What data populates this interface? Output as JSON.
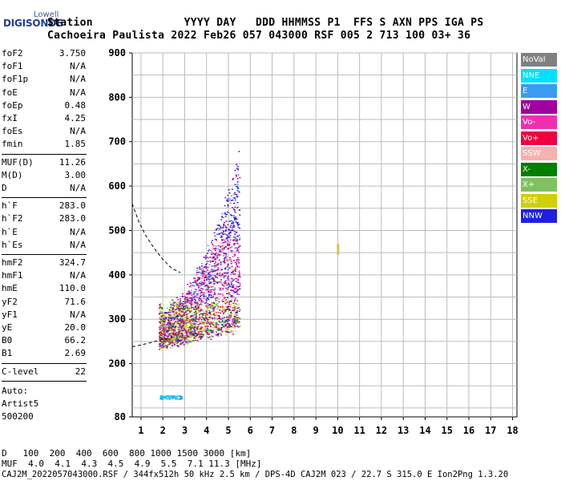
{
  "logo": {
    "top": "Lowell",
    "main": "DIGISONDE"
  },
  "header": {
    "line1": "Station              YYYY DAY   DDD HHMMSS P1  FFS S AXN PPS IGA PS",
    "line2": "Cachoeira Paulista 2022 Feb26 057 043000 RSF 005 2 713 100 03+ 36"
  },
  "params": {
    "group1": [
      {
        "name": "foF2",
        "value": "3.750"
      },
      {
        "name": "foF1",
        "value": "N/A"
      },
      {
        "name": "foF1p",
        "value": "N/A"
      },
      {
        "name": "foE",
        "value": "N/A"
      },
      {
        "name": "foEp",
        "value": "0.48"
      },
      {
        "name": "fxI",
        "value": "4.25"
      },
      {
        "name": "foEs",
        "value": "N/A"
      },
      {
        "name": "fmin",
        "value": "1.85"
      }
    ],
    "group2": [
      {
        "name": "MUF(D)",
        "value": "11.26"
      },
      {
        "name": "M(D)",
        "value": "3.00"
      },
      {
        "name": "D",
        "value": "N/A"
      }
    ],
    "group3": [
      {
        "name": "h`F",
        "value": "283.0"
      },
      {
        "name": "h`F2",
        "value": "283.0"
      },
      {
        "name": "h`E",
        "value": "N/A"
      },
      {
        "name": "h`Es",
        "value": "N/A"
      }
    ],
    "group4": [
      {
        "name": "hmF2",
        "value": "324.7"
      },
      {
        "name": "hmF1",
        "value": "N/A"
      },
      {
        "name": "hmE",
        "value": "110.0"
      },
      {
        "name": "yF2",
        "value": "71.6"
      },
      {
        "name": "yF1",
        "value": "N/A"
      },
      {
        "name": "yE",
        "value": "20.0"
      },
      {
        "name": "B0",
        "value": "66.2"
      },
      {
        "name": "B1",
        "value": "2.69"
      }
    ],
    "group5": [
      {
        "name": "C-level",
        "value": "22"
      }
    ],
    "auto_label": "Auto:",
    "artist": "Artist5",
    "version": "500200"
  },
  "legend": [
    {
      "label": "NoVal",
      "color": "#808080",
      "text": "#ffffff"
    },
    {
      "label": "NNE",
      "color": "#00e0ff",
      "text": "#ffffff"
    },
    {
      "label": "E",
      "color": "#3a9cf0",
      "text": "#ffffff"
    },
    {
      "label": "W",
      "color": "#a000a0",
      "text": "#ffffff"
    },
    {
      "label": "Vo-",
      "color": "#ee30b0",
      "text": "#ffffff"
    },
    {
      "label": "Vo+",
      "color": "#f00040",
      "text": "#ffffff"
    },
    {
      "label": "SSW",
      "color": "#f8b0b0",
      "text": "#ffffff"
    },
    {
      "label": "X-",
      "color": "#008000",
      "text": "#ffffff"
    },
    {
      "label": "X+",
      "color": "#80c060",
      "text": "#ffffff"
    },
    {
      "label": "SSE",
      "color": "#d0d000",
      "text": "#ffffff"
    },
    {
      "label": "NNW",
      "color": "#2020e0",
      "text": "#ffffff"
    }
  ],
  "chart_data": {
    "type": "scatter",
    "title": "",
    "xlabel": "",
    "ylabel": "",
    "xlim": [
      0.6,
      18.2
    ],
    "ylim": [
      80,
      900
    ],
    "x_ticks": [
      1,
      2,
      3,
      4,
      5,
      6,
      7,
      8,
      9,
      10,
      11,
      12,
      13,
      14,
      15,
      16,
      17,
      18
    ],
    "y_ticks": [
      80,
      200,
      300,
      400,
      500,
      600,
      700,
      800,
      900
    ],
    "grid": true,
    "trace_profile": [
      {
        "x": 0.6,
        "y": 560
      },
      {
        "x": 0.9,
        "y": 520
      },
      {
        "x": 1.2,
        "y": 490
      },
      {
        "x": 1.6,
        "y": 460
      },
      {
        "x": 2.0,
        "y": 435
      },
      {
        "x": 2.4,
        "y": 415
      },
      {
        "x": 2.8,
        "y": 405
      }
    ],
    "trace_lower": [
      {
        "x": 0.6,
        "y": 238
      },
      {
        "x": 1.0,
        "y": 242
      },
      {
        "x": 1.5,
        "y": 248
      },
      {
        "x": 2.0,
        "y": 255
      },
      {
        "x": 2.5,
        "y": 260
      }
    ],
    "echo_regions": [
      {
        "name": "F2 main",
        "x": [
          1.8,
          5.6
        ],
        "y": [
          230,
          690
        ]
      },
      {
        "name": "low spread",
        "x": [
          1.8,
          2.9
        ],
        "y": [
          120,
          130
        ]
      },
      {
        "name": "isolated echo",
        "x": [
          10.0,
          10.0
        ],
        "y": [
          445,
          470
        ]
      }
    ]
  },
  "footer": {
    "row_d_label": "D",
    "row_d": "   100  200  400  600  800 1000 1500 3000 [km]",
    "row_muf_label": "MUF",
    "row_muf": "  4.0  4.1  4.3  4.5  4.9  5.5  7.1 11.3 [MHz]",
    "file_line": "CAJ2M_2022057043000.RSF / 344fx512h 50 kHz 2.5 km / DPS-4D CAJ2M 023 / 22.7 S 315.0 E Ion2Png 1.3.20"
  }
}
